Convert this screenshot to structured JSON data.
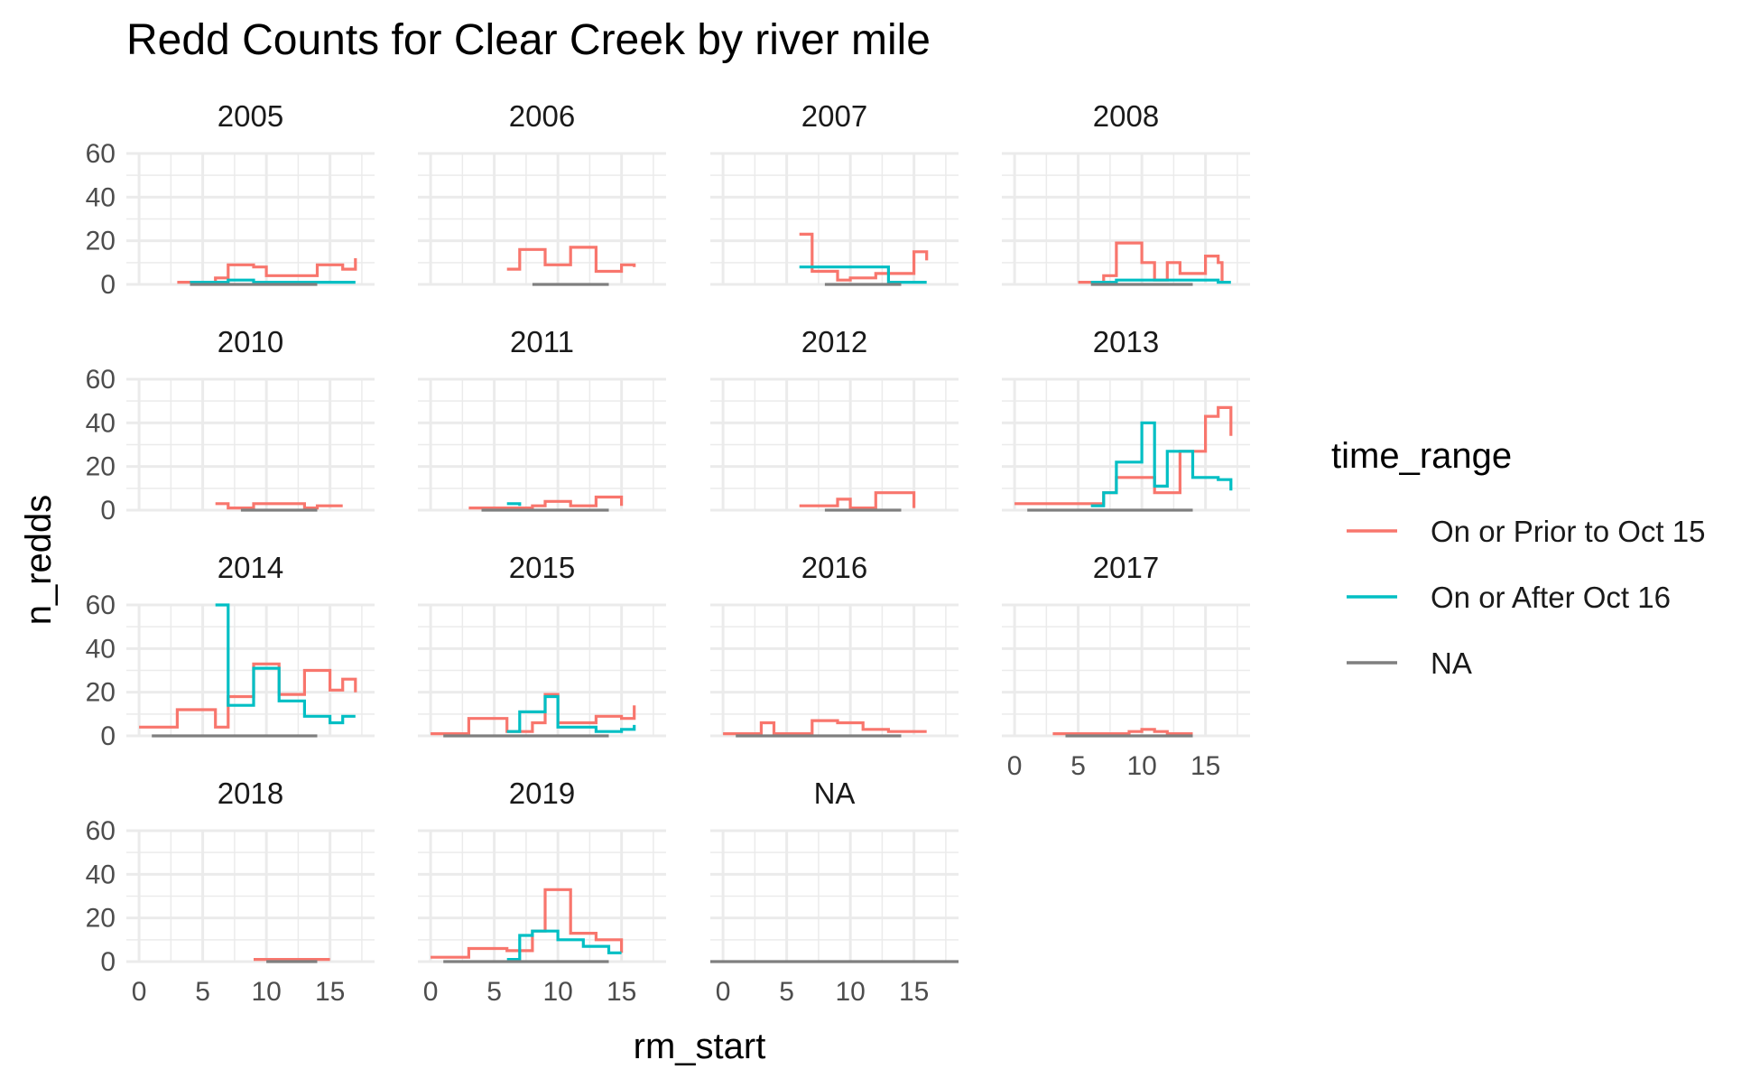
{
  "chart_data": {
    "type": "line",
    "subtype": "step",
    "title": "Redd Counts for Clear Creek by river mile",
    "xlabel": "rm_start",
    "ylabel": "n_redds",
    "xlim": [
      -1,
      18.5
    ],
    "ylim": [
      0,
      60
    ],
    "x_ticks": [
      0,
      5,
      10,
      15
    ],
    "y_ticks": [
      0,
      20,
      40,
      60
    ],
    "x_tick_labels": [
      "0",
      "5",
      "10",
      "15"
    ],
    "y_tick_labels": [
      "0",
      "20",
      "40",
      "60"
    ],
    "grid": true,
    "legend": {
      "title": "time_range",
      "placement": "right",
      "entries": [
        {
          "label": "On or Prior to Oct 15",
          "color": "#F8766D"
        },
        {
          "label": "On or After Oct 16",
          "color": "#00BFC4"
        },
        {
          "label": "NA",
          "color": "#7F7F7F"
        }
      ]
    },
    "facets": [
      {
        "label": "2005",
        "series": [
          {
            "name": "On or Prior to Oct 15",
            "x": [
              3,
              6,
              7,
              9,
              10,
              14,
              16,
              17
            ],
            "y": [
              1,
              3,
              9,
              8,
              4,
              9,
              7,
              12
            ]
          },
          {
            "name": "On or After Oct 16",
            "x": [
              4,
              6,
              7,
              8,
              9,
              12,
              14,
              16,
              17
            ],
            "y": [
              1,
              1,
              2,
              2,
              1,
              1,
              1,
              1,
              1
            ]
          },
          {
            "name": "NA",
            "x": [
              4,
              14
            ],
            "y": [
              0,
              0
            ]
          }
        ]
      },
      {
        "label": "2006",
        "series": [
          {
            "name": "On or Prior to Oct 15",
            "x": [
              6,
              7,
              9,
              11,
              13,
              15,
              16
            ],
            "y": [
              7,
              16,
              9,
              17,
              6,
              9,
              8
            ]
          },
          {
            "name": "NA",
            "x": [
              8,
              14
            ],
            "y": [
              0,
              0
            ]
          }
        ]
      },
      {
        "label": "2007",
        "series": [
          {
            "name": "On or Prior to Oct 15",
            "x": [
              6,
              7,
              9,
              10,
              12,
              15,
              16
            ],
            "y": [
              23,
              6,
              2,
              3,
              5,
              15,
              11
            ]
          },
          {
            "name": "On or After Oct 16",
            "x": [
              6,
              13,
              16
            ],
            "y": [
              8,
              1,
              1
            ]
          },
          {
            "name": "NA",
            "x": [
              8,
              14
            ],
            "y": [
              0,
              0
            ]
          }
        ]
      },
      {
        "label": "2008",
        "series": [
          {
            "name": "On or Prior to Oct 15",
            "x": [
              5,
              7,
              8,
              10,
              11,
              12,
              13,
              15,
              16,
              16.3
            ],
            "y": [
              1,
              4,
              19,
              10,
              2,
              10,
              5,
              13,
              10,
              1
            ]
          },
          {
            "name": "On or After Oct 16",
            "x": [
              6,
              8,
              10,
              14,
              16,
              17
            ],
            "y": [
              1,
              2,
              2,
              2,
              1,
              1
            ]
          },
          {
            "name": "NA",
            "x": [
              6,
              14
            ],
            "y": [
              0,
              0
            ]
          }
        ]
      },
      {
        "label": "2010",
        "series": [
          {
            "name": "On or Prior to Oct 15",
            "x": [
              6,
              7,
              9,
              13,
              14,
              16
            ],
            "y": [
              3,
              1,
              3,
              1,
              2,
              2
            ]
          },
          {
            "name": "NA",
            "x": [
              8,
              14
            ],
            "y": [
              0,
              0
            ]
          }
        ]
      },
      {
        "label": "2011",
        "series": [
          {
            "name": "On or Prior to Oct 15",
            "x": [
              3,
              8,
              9,
              11,
              13,
              14,
              15
            ],
            "y": [
              1,
              2,
              4,
              2,
              6,
              6,
              2
            ]
          },
          {
            "name": "On or After Oct 16",
            "x": [
              6,
              7
            ],
            "y": [
              3,
              2
            ]
          },
          {
            "name": "NA",
            "x": [
              4,
              14
            ],
            "y": [
              0,
              0
            ]
          }
        ]
      },
      {
        "label": "2012",
        "series": [
          {
            "name": "On or Prior to Oct 15",
            "x": [
              6,
              9,
              10,
              12,
              14,
              15
            ],
            "y": [
              2,
              5,
              1,
              8,
              8,
              1
            ]
          },
          {
            "name": "NA",
            "x": [
              8,
              14
            ],
            "y": [
              0,
              0
            ]
          }
        ]
      },
      {
        "label": "2013",
        "series": [
          {
            "name": "On or Prior to Oct 15",
            "x": [
              0,
              6,
              7,
              8,
              10,
              11,
              13,
              15,
              16,
              17
            ],
            "y": [
              3,
              3,
              8,
              15,
              15,
              8,
              27,
              43,
              47,
              34
            ]
          },
          {
            "name": "On or After Oct 16",
            "x": [
              6,
              7,
              8,
              10,
              11,
              12,
              14,
              16,
              17
            ],
            "y": [
              2,
              8,
              22,
              40,
              11,
              27,
              15,
              14,
              9
            ]
          },
          {
            "name": "NA",
            "x": [
              1,
              14
            ],
            "y": [
              0,
              0
            ]
          }
        ]
      },
      {
        "label": "2014",
        "series": [
          {
            "name": "On or Prior to Oct 15",
            "x": [
              0,
              3,
              6,
              7,
              9,
              11,
              13,
              15,
              16,
              17
            ],
            "y": [
              4,
              12,
              4,
              18,
              33,
              19,
              30,
              21,
              26,
              20
            ]
          },
          {
            "name": "On or After Oct 16",
            "x": [
              6,
              7,
              9,
              11,
              13,
              15,
              16,
              17
            ],
            "y": [
              60,
              14,
              31,
              16,
              9,
              6,
              9,
              9
            ]
          },
          {
            "name": "NA",
            "x": [
              1,
              14
            ],
            "y": [
              0,
              0
            ]
          }
        ]
      },
      {
        "label": "2015",
        "series": [
          {
            "name": "On or Prior to Oct 15",
            "x": [
              0,
              3,
              6,
              8,
              9,
              10,
              12,
              13,
              15,
              16
            ],
            "y": [
              1,
              8,
              2,
              6,
              19,
              6,
              6,
              9,
              8,
              14
            ]
          },
          {
            "name": "On or After Oct 16",
            "x": [
              6,
              7,
              9,
              10,
              13,
              15,
              16
            ],
            "y": [
              2,
              11,
              18,
              4,
              2,
              3,
              5
            ]
          },
          {
            "name": "NA",
            "x": [
              1,
              14
            ],
            "y": [
              0,
              0
            ]
          }
        ]
      },
      {
        "label": "2016",
        "series": [
          {
            "name": "On or Prior to Oct 15",
            "x": [
              0,
              3,
              4,
              7,
              9,
              11,
              13,
              15,
              16
            ],
            "y": [
              1,
              6,
              1,
              7,
              6,
              3,
              2,
              2,
              2
            ]
          },
          {
            "name": "NA",
            "x": [
              1,
              14
            ],
            "y": [
              0,
              0
            ]
          }
        ]
      },
      {
        "label": "2017",
        "series": [
          {
            "name": "On or Prior to Oct 15",
            "x": [
              3,
              9,
              10,
              11,
              12,
              14
            ],
            "y": [
              1,
              2,
              3,
              2,
              1,
              1
            ]
          },
          {
            "name": "NA",
            "x": [
              4,
              14
            ],
            "y": [
              0,
              0
            ]
          }
        ]
      },
      {
        "label": "2018",
        "series": [
          {
            "name": "On or Prior to Oct 15",
            "x": [
              9,
              15
            ],
            "y": [
              1,
              1
            ]
          },
          {
            "name": "NA",
            "x": [
              10,
              14
            ],
            "y": [
              0,
              0
            ]
          }
        ]
      },
      {
        "label": "2019",
        "series": [
          {
            "name": "On or Prior to Oct 15",
            "x": [
              0,
              3,
              6,
              8,
              9,
              11,
              13,
              15
            ],
            "y": [
              2,
              6,
              5,
              14,
              33,
              13,
              10,
              4
            ]
          },
          {
            "name": "On or After Oct 16",
            "x": [
              6,
              7,
              8,
              10,
              12,
              14,
              15
            ],
            "y": [
              1,
              12,
              14,
              10,
              7,
              4,
              4
            ]
          },
          {
            "name": "NA",
            "x": [
              1,
              14
            ],
            "y": [
              0,
              0
            ]
          }
        ]
      },
      {
        "label": "NA",
        "series": [
          {
            "name": "NA",
            "x": [
              -1,
              18.5
            ],
            "y": [
              0,
              0
            ]
          }
        ]
      }
    ]
  }
}
